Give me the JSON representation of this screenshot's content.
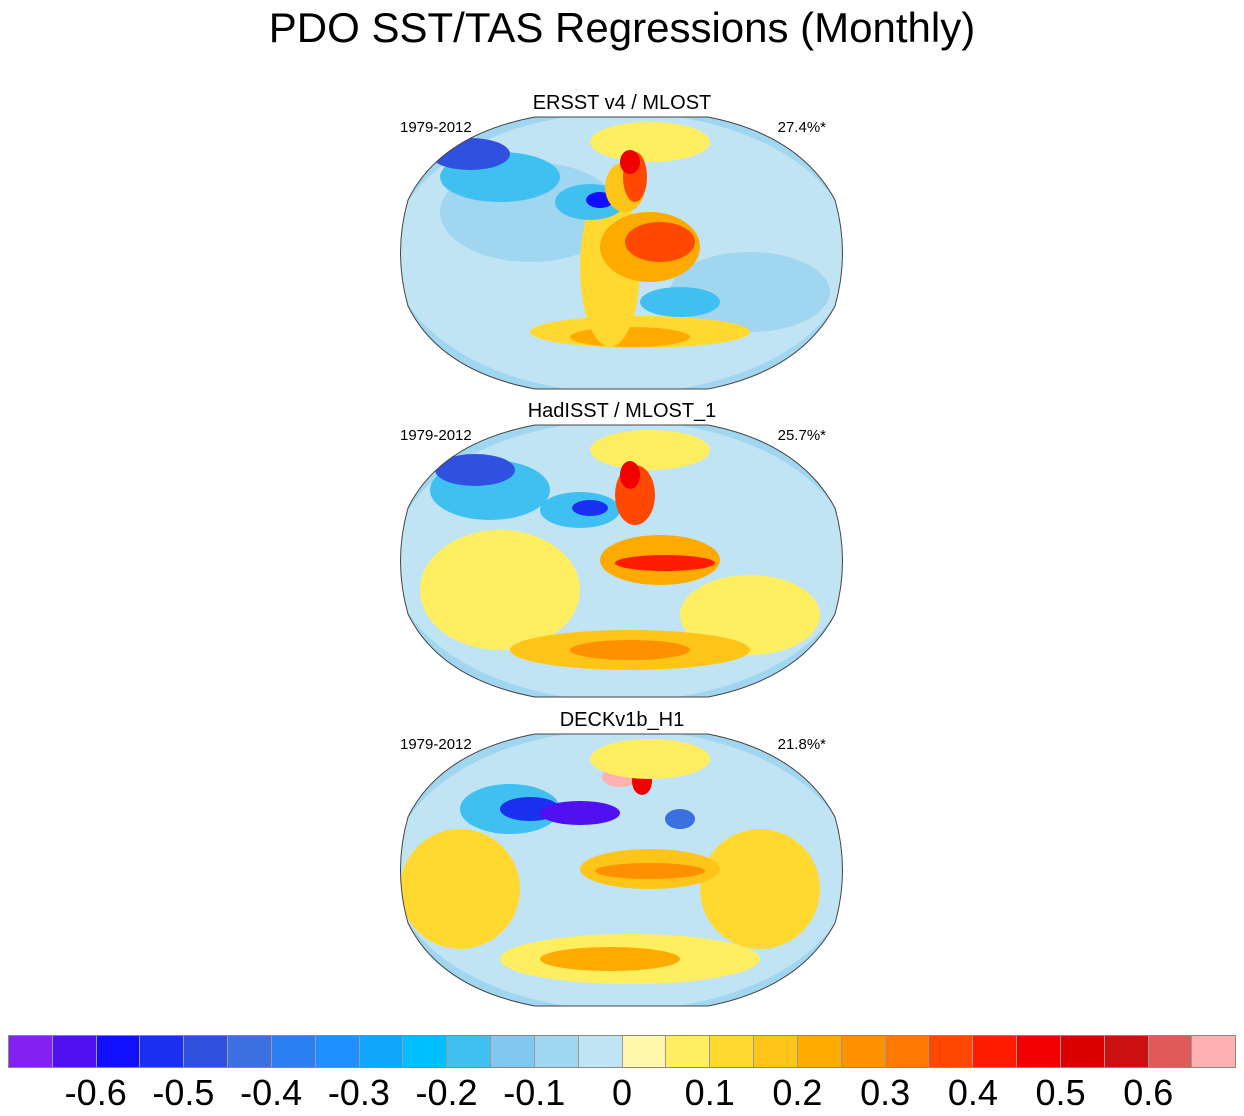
{
  "title": "PDO SST/TAS Regressions (Monthly)",
  "panels": [
    {
      "title": "ERSST v4 / MLOST",
      "period": "1979-2012",
      "percent": "27.4%*"
    },
    {
      "title": "HadISST / MLOST_1",
      "period": "1979-2012",
      "percent": "25.7%*"
    },
    {
      "title": "DECKv1b_H1",
      "period": "1979-2012",
      "percent": "21.8%*"
    }
  ],
  "chart_data": {
    "type": "heatmap",
    "title": "PDO SST/TAS Regressions (Monthly)",
    "colorbar": {
      "tick_labels": [
        "-0.6",
        "-0.5",
        "-0.4",
        "-0.3",
        "-0.2",
        "-0.1",
        "0",
        "0.1",
        "0.2",
        "0.3",
        "0.4",
        "0.5",
        "0.6"
      ],
      "tick_values": [
        -0.6,
        -0.5,
        -0.4,
        -0.3,
        -0.2,
        -0.1,
        0,
        0.1,
        0.2,
        0.3,
        0.4,
        0.5,
        0.6
      ],
      "level_step": 0.05,
      "range": [
        -0.7,
        0.7
      ],
      "colors": [
        "#8420f0",
        "#5010f0",
        "#1010ff",
        "#1a30f0",
        "#3050e0",
        "#3c70e0",
        "#2a80f0",
        "#1e90ff",
        "#10a8ff",
        "#00bfff",
        "#40c0f0",
        "#80c8ef",
        "#a0d6f0",
        "#c0e4f4",
        "#fff8a8",
        "#ffee60",
        "#ffd830",
        "#ffc418",
        "#ffaa00",
        "#ff9000",
        "#ff7800",
        "#ff4800",
        "#ff1c00",
        "#f00000",
        "#d80000",
        "#cc1010",
        "#e05a5a",
        "#ffb0b0"
      ]
    }
  }
}
